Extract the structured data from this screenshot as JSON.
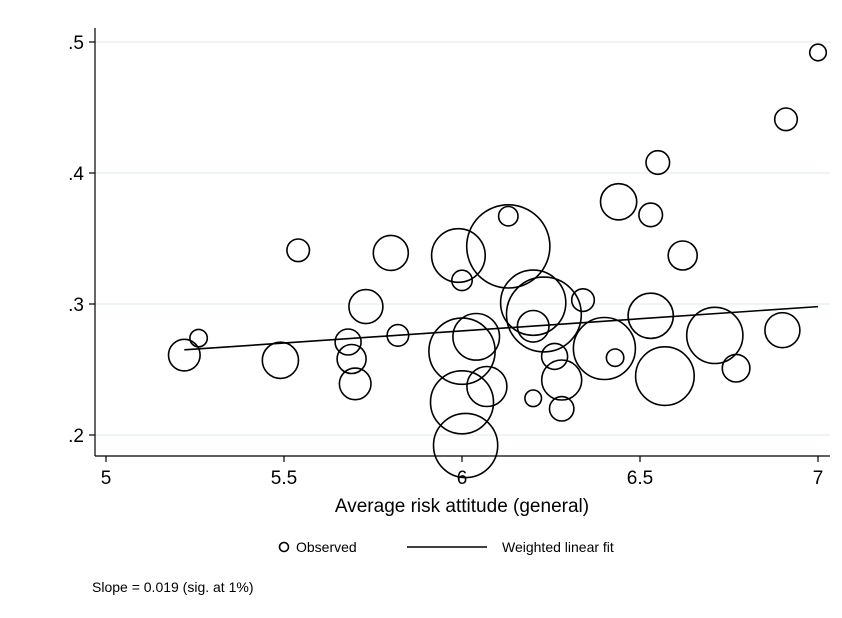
{
  "chart_data": {
    "type": "scatter",
    "title": "",
    "xlabel": "Average risk attitude (general)",
    "ylabel": "",
    "xlim": [
      5,
      7
    ],
    "ylim": [
      0.2,
      0.5
    ],
    "x_ticks": [
      5,
      5.5,
      6,
      6.5,
      7
    ],
    "x_tick_labels": [
      "5",
      "5.5",
      "6",
      "6.5",
      "7"
    ],
    "y_ticks": [
      0.2,
      0.3,
      0.4,
      0.5
    ],
    "y_tick_labels": [
      ".2",
      ".3",
      ".4",
      ".5"
    ],
    "grid": "horizontal",
    "legend_position": "bottom",
    "legend": [
      {
        "label": "Observed",
        "marker": "hollow-circle"
      },
      {
        "label": "Weighted linear fit",
        "marker": "line"
      }
    ],
    "note": "Slope = 0.019 (sig. at 1%)",
    "series": [
      {
        "name": "Observed",
        "kind": "bubbles",
        "points": [
          {
            "x": 5.22,
            "y": 0.261,
            "w": 1.0
          },
          {
            "x": 5.26,
            "y": 0.274,
            "w": 0.18
          },
          {
            "x": 5.49,
            "y": 0.257,
            "w": 1.4
          },
          {
            "x": 5.54,
            "y": 0.341,
            "w": 0.4
          },
          {
            "x": 5.68,
            "y": 0.271,
            "w": 0.6
          },
          {
            "x": 5.69,
            "y": 0.258,
            "w": 0.8
          },
          {
            "x": 5.7,
            "y": 0.239,
            "w": 1.0
          },
          {
            "x": 5.73,
            "y": 0.298,
            "w": 1.2
          },
          {
            "x": 5.8,
            "y": 0.339,
            "w": 1.3
          },
          {
            "x": 5.82,
            "y": 0.276,
            "w": 0.35
          },
          {
            "x": 5.99,
            "y": 0.337,
            "w": 3.6
          },
          {
            "x": 6.0,
            "y": 0.318,
            "w": 0.3
          },
          {
            "x": 6.0,
            "y": 0.264,
            "w": 5.8
          },
          {
            "x": 6.0,
            "y": 0.225,
            "w": 5.2
          },
          {
            "x": 6.01,
            "y": 0.192,
            "w": 5.4
          },
          {
            "x": 6.04,
            "y": 0.275,
            "w": 2.6
          },
          {
            "x": 6.07,
            "y": 0.237,
            "w": 1.8
          },
          {
            "x": 6.13,
            "y": 0.344,
            "w": 9.6
          },
          {
            "x": 6.13,
            "y": 0.367,
            "w": 0.25
          },
          {
            "x": 6.2,
            "y": 0.301,
            "w": 5.6
          },
          {
            "x": 6.2,
            "y": 0.228,
            "w": 0.15
          },
          {
            "x": 6.2,
            "y": 0.283,
            "w": 1.0
          },
          {
            "x": 6.23,
            "y": 0.292,
            "w": 7.6
          },
          {
            "x": 6.26,
            "y": 0.26,
            "w": 0.6
          },
          {
            "x": 6.28,
            "y": 0.242,
            "w": 1.8
          },
          {
            "x": 6.28,
            "y": 0.22,
            "w": 0.5
          },
          {
            "x": 6.34,
            "y": 0.303,
            "w": 0.4
          },
          {
            "x": 6.4,
            "y": 0.266,
            "w": 5.0
          },
          {
            "x": 6.43,
            "y": 0.259,
            "w": 0.18
          },
          {
            "x": 6.44,
            "y": 0.378,
            "w": 1.4
          },
          {
            "x": 6.53,
            "y": 0.368,
            "w": 0.45
          },
          {
            "x": 6.53,
            "y": 0.291,
            "w": 2.4
          },
          {
            "x": 6.55,
            "y": 0.408,
            "w": 0.45
          },
          {
            "x": 6.57,
            "y": 0.245,
            "w": 4.4
          },
          {
            "x": 6.62,
            "y": 0.337,
            "w": 0.8
          },
          {
            "x": 6.71,
            "y": 0.276,
            "w": 4.0
          },
          {
            "x": 6.77,
            "y": 0.251,
            "w": 0.7
          },
          {
            "x": 6.9,
            "y": 0.28,
            "w": 1.3
          },
          {
            "x": 6.91,
            "y": 0.441,
            "w": 0.4
          },
          {
            "x": 7.0,
            "y": 0.492,
            "w": 0.15
          }
        ]
      },
      {
        "name": "Weighted linear fit",
        "kind": "line",
        "x": [
          5.22,
          7.0
        ],
        "y": [
          0.265,
          0.298
        ]
      }
    ]
  }
}
